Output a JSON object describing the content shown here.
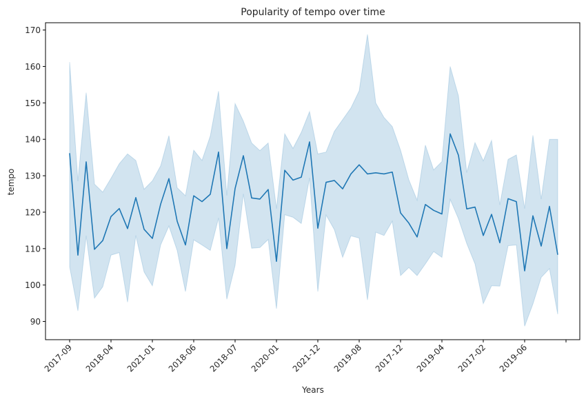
{
  "chart_data": {
    "type": "line",
    "title": "Popularity of tempo over time",
    "xlabel": "Years",
    "ylabel": "tempo",
    "ylim": [
      85,
      172
    ],
    "yticks": [
      90,
      100,
      110,
      120,
      130,
      140,
      150,
      160,
      170
    ],
    "xtick_labels": [
      "2017-09",
      "2018-04",
      "2021-01",
      "2018-06",
      "2018-07",
      "2020-01",
      "2021-12",
      "2019-08",
      "2017-12",
      "2019-04",
      "2017-02",
      "2019-06"
    ],
    "grid": false,
    "colors": {
      "line": "#1f77b4",
      "band": "#1f77b4"
    },
    "series": [
      {
        "values": [
          136.2,
          108.2,
          133.8,
          109.8,
          112.2,
          118.8,
          121.0,
          115.5,
          124.0,
          115.3,
          112.8,
          122.2,
          129.2,
          117.5,
          111.0,
          124.5,
          122.9,
          124.9,
          136.5,
          110.0,
          126.5,
          135.5,
          123.9,
          123.6,
          126.2,
          106.5,
          131.5,
          128.8,
          129.6,
          139.3,
          115.6,
          128.2,
          128.7,
          126.4,
          130.5,
          133.0,
          130.5,
          130.8,
          130.5,
          131.0,
          119.8,
          117.0,
          113.2,
          122.1,
          120.5,
          119.5,
          141.5,
          135.6,
          120.9,
          121.4,
          113.6,
          119.4,
          111.6,
          123.7,
          122.9,
          103.9,
          119.0,
          110.7,
          121.6,
          108.3
        ],
        "lower": [
          105.0,
          92.9,
          113.5,
          96.4,
          99.5,
          108.2,
          108.9,
          95.3,
          113.6,
          103.6,
          99.8,
          111.0,
          116.2,
          109.5,
          98.2,
          112.4,
          111.0,
          109.5,
          118.4,
          96.1,
          105.4,
          125.0,
          110.1,
          110.3,
          112.5,
          93.5,
          119.3,
          118.6,
          116.9,
          129.4,
          98.2,
          119.2,
          115.2,
          107.6,
          113.5,
          112.9,
          95.9,
          114.5,
          113.6,
          117.5,
          102.6,
          104.8,
          102.6,
          105.8,
          109.2,
          107.6,
          123.5,
          118.2,
          111.4,
          105.8,
          94.9,
          99.8,
          99.7,
          110.8,
          111.0,
          88.7,
          94.8,
          102.1,
          104.5,
          92.0
        ],
        "upper": [
          161.2,
          128.5,
          152.8,
          127.7,
          125.5,
          129.3,
          133.3,
          136.0,
          134.2,
          126.3,
          128.6,
          132.7,
          141.0,
          126.7,
          124.5,
          137.0,
          134.2,
          140.9,
          153.2,
          124.6,
          149.8,
          145.0,
          139.0,
          136.9,
          139.0,
          121.0,
          141.5,
          137.5,
          141.9,
          147.6,
          136.0,
          136.5,
          142.2,
          145.4,
          148.6,
          153.3,
          168.8,
          150.0,
          146.0,
          143.5,
          137.0,
          128.9,
          123.3,
          138.4,
          131.6,
          133.9,
          160.0,
          151.9,
          130.9,
          139.1,
          134.1,
          139.7,
          122.0,
          134.5,
          135.7,
          121.0,
          141.1,
          123.6,
          140.0,
          140.0
        ]
      }
    ]
  }
}
